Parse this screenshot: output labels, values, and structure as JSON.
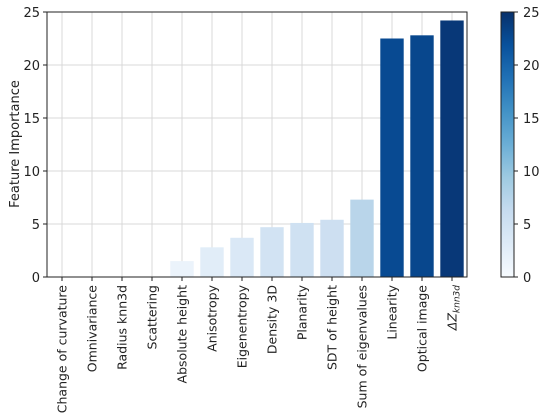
{
  "chart_data": {
    "type": "bar",
    "ylabel": "Feature Importance",
    "ylim": [
      0,
      25
    ],
    "yticks": [
      0,
      5,
      10,
      15,
      20,
      25
    ],
    "grid": true,
    "categories": [
      "Change of curvature",
      "Omnivariance",
      "Radius knn3d",
      "Scattering",
      "Absolute height",
      "Anisotropy",
      "Eigenentropy",
      "Density 3D",
      "Planarity",
      "SDT of height",
      "Sum of eigenvalues",
      "Linearity",
      "Optical image",
      "ΔZknn3d"
    ],
    "values": [
      0,
      0,
      0,
      0,
      1.5,
      2.8,
      3.7,
      4.7,
      5.1,
      5.4,
      7.3,
      22.5,
      22.8,
      24.2
    ],
    "colormap": {
      "name": "Blues",
      "min": 0,
      "max": 25,
      "ticks": [
        0,
        5,
        10,
        15,
        20,
        25
      ],
      "low_color": "#f7fbff",
      "high_color": "#08306b"
    }
  }
}
